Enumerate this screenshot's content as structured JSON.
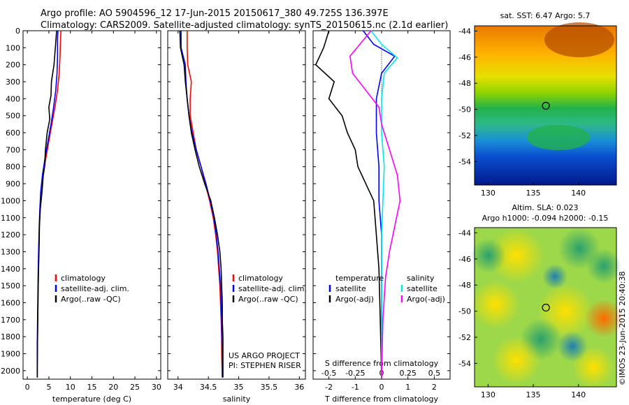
{
  "title_line1": "Argo profile: AO 5904596_12 17-Jun-2015 20150617_380 49.725S 136.397E",
  "title_line2": "Climatology: CARS2009. Satellite-adjusted climatology: synTS_20150615.nc (2.1d earlier)",
  "credit": "©IMOS 23-Jun-2015 20:40:38",
  "colors": {
    "climatology": "#ff0000",
    "satellite": "#0000ff",
    "argo": "#000000",
    "satellite_sal": "#00e5ee",
    "argo_sal": "#ff00ff"
  },
  "chart_data": [
    {
      "type": "line",
      "panel": "temperature",
      "xlabel": "temperature (deg C)",
      "ylabel": "",
      "xlim": [
        -1,
        31
      ],
      "ylim": [
        2050,
        0
      ],
      "xticks": [
        0,
        5,
        10,
        15,
        20,
        25,
        30
      ],
      "yticks": [
        0,
        100,
        200,
        300,
        400,
        500,
        600,
        700,
        800,
        900,
        1000,
        1100,
        1200,
        1300,
        1400,
        1500,
        1600,
        1700,
        1800,
        1900,
        2000
      ],
      "legend": [
        "climatology",
        "satellite-adj. clim.",
        "Argo(..raw -QC)"
      ],
      "legend_position": "lower-center",
      "series": [
        {
          "name": "climatology",
          "color": "#ff0000",
          "x": [
            7.8,
            7.7,
            7.6,
            7.4,
            7.0,
            6.4,
            5.7,
            5.0,
            4.3,
            3.7,
            3.3,
            3.0,
            2.8,
            2.7,
            2.6,
            2.55,
            2.5,
            2.45,
            2.4,
            2.35,
            2.3,
            2.3
          ],
          "y": [
            0,
            50,
            150,
            250,
            350,
            450,
            550,
            650,
            750,
            850,
            950,
            1050,
            1150,
            1250,
            1350,
            1450,
            1550,
            1650,
            1750,
            1850,
            1950,
            2040
          ]
        },
        {
          "name": "satellite-adj. clim.",
          "color": "#0000ff",
          "x": [
            7.1,
            7.0,
            7.0,
            6.9,
            6.6,
            6.1,
            5.5,
            4.8,
            4.1,
            3.5,
            3.1,
            2.9,
            2.75,
            2.65,
            2.55,
            2.5,
            2.45,
            2.4,
            2.35,
            2.3,
            2.3,
            2.3
          ],
          "y": [
            0,
            50,
            150,
            250,
            350,
            450,
            550,
            650,
            750,
            850,
            950,
            1050,
            1150,
            1250,
            1350,
            1450,
            1550,
            1650,
            1750,
            1850,
            1950,
            2040
          ]
        },
        {
          "name": "Argo(..raw -QC)",
          "color": "#000000",
          "x": [
            6.8,
            6.5,
            6.2,
            5.6,
            5.5,
            5.0,
            5.2,
            4.6,
            4.2,
            4.0,
            3.7,
            3.4,
            3.0,
            2.8,
            2.75,
            2.65,
            2.55,
            2.5,
            2.45,
            2.4,
            2.35,
            2.3
          ],
          "y": [
            0,
            100,
            200,
            300,
            380,
            450,
            520,
            600,
            700,
            800,
            850,
            950,
            1050,
            1150,
            1250,
            1350,
            1450,
            1550,
            1650,
            1750,
            1850,
            2040
          ]
        }
      ]
    },
    {
      "type": "line",
      "panel": "salinity",
      "xlabel": "salinity",
      "xlim": [
        33.83,
        36.1
      ],
      "ylim": [
        2050,
        0
      ],
      "xticks": [
        34,
        34.5,
        35,
        35.5,
        36
      ],
      "legend": [
        "climatology",
        "satellite-adj. clim.",
        "Argo(..raw -QC)"
      ],
      "legend_position": "lower-right",
      "annotation": [
        "US ARGO PROJECT",
        "PI: STEPHEN RISER"
      ],
      "series": [
        {
          "name": "climatology",
          "color": "#ff0000",
          "x": [
            34.15,
            34.15,
            34.16,
            34.22,
            34.2,
            34.2,
            34.25,
            34.3,
            34.38,
            34.45,
            34.52,
            34.58,
            34.62,
            34.65,
            34.67,
            34.69,
            34.7,
            34.71,
            34.72,
            34.72,
            34.73
          ],
          "y": [
            0,
            100,
            200,
            300,
            400,
            500,
            600,
            700,
            800,
            900,
            1000,
            1100,
            1200,
            1300,
            1400,
            1500,
            1600,
            1700,
            1800,
            1900,
            2040
          ]
        },
        {
          "name": "satellite-adj. clim.",
          "color": "#0000ff",
          "x": [
            34.05,
            34.05,
            34.12,
            34.13,
            34.15,
            34.18,
            34.23,
            34.3,
            34.38,
            34.46,
            34.53,
            34.59,
            34.63,
            34.66,
            34.68,
            34.7,
            34.71,
            34.72,
            34.72,
            34.73,
            34.73
          ],
          "y": [
            0,
            100,
            200,
            300,
            400,
            500,
            600,
            700,
            800,
            900,
            1000,
            1100,
            1200,
            1300,
            1400,
            1500,
            1600,
            1700,
            1800,
            1900,
            2040
          ]
        },
        {
          "name": "Argo(..raw -QC)",
          "color": "#000000",
          "x": [
            34.03,
            34.04,
            34.1,
            34.12,
            34.15,
            34.18,
            34.22,
            34.28,
            34.35,
            34.44,
            34.54,
            34.6,
            34.65,
            34.69,
            34.71,
            34.72,
            34.73,
            34.73,
            34.74,
            34.74,
            34.74
          ],
          "y": [
            0,
            100,
            200,
            300,
            400,
            500,
            600,
            700,
            800,
            900,
            1000,
            1100,
            1200,
            1300,
            1400,
            1500,
            1600,
            1700,
            1800,
            1900,
            2040
          ]
        }
      ]
    },
    {
      "type": "line",
      "panel": "difference",
      "xlabel": "T difference from climatology",
      "xlabel_top": "S difference from climatology",
      "xlim": [
        -2.6,
        2.6
      ],
      "ylim": [
        2050,
        0
      ],
      "xticks_T": [
        -2,
        -1,
        0,
        1,
        2
      ],
      "xticks_S": [
        -0.5,
        -0.25,
        0,
        0.25,
        0.5
      ],
      "legend_T": [
        "temperature",
        "satellite",
        "Argo(-adj)"
      ],
      "legend_S": [
        "salinity",
        "satellite",
        "Argo(-adj)"
      ],
      "series": [
        {
          "name": "temperature satellite",
          "color": "#0000ff",
          "x": [
            -0.7,
            -0.3,
            0.5,
            0.0,
            -0.2,
            -0.2,
            -0.1,
            -0.1,
            0.0,
            0.0,
            0.0,
            0.0,
            0.0
          ],
          "y": [
            0,
            80,
            150,
            250,
            400,
            600,
            800,
            1000,
            1200,
            1400,
            1600,
            1800,
            2040
          ]
        },
        {
          "name": "temperature Argo(-adj)",
          "color": "#000000",
          "x": [
            -2.0,
            -2.2,
            -2.5,
            -1.8,
            -2.0,
            -1.5,
            -1.3,
            -1.0,
            -0.9,
            -0.6,
            -0.3,
            -0.2,
            -0.1,
            -0.05,
            0.0
          ],
          "y": [
            0,
            100,
            200,
            300,
            400,
            500,
            600,
            700,
            800,
            900,
            1000,
            1200,
            1400,
            1700,
            2040
          ]
        },
        {
          "name": "salinity satellite",
          "color": "#00e5ee",
          "x": [
            -0.4,
            0.0,
            0.6,
            0.1,
            0.0,
            0.0,
            0.1,
            0.05,
            0.0,
            0.0,
            0.0,
            0.0
          ],
          "y": [
            0,
            80,
            160,
            250,
            400,
            600,
            800,
            1000,
            1200,
            1400,
            1700,
            2040
          ]
        },
        {
          "name": "salinity Argo(-adj)",
          "color": "#ff00ff",
          "x": [
            -0.4,
            -1.2,
            -1.1,
            -0.6,
            -0.1,
            0.0,
            0.3,
            0.6,
            0.7,
            0.5,
            0.3,
            0.15,
            0.05,
            0.0
          ],
          "y": [
            0,
            150,
            250,
            350,
            450,
            550,
            700,
            850,
            1000,
            1150,
            1300,
            1450,
            1700,
            2040
          ]
        }
      ]
    },
    {
      "type": "heatmap",
      "panel": "sst_map",
      "title": "sat. SST: 6.47  Argo: 5.7",
      "xticks": [
        130,
        135,
        140
      ],
      "yticks": [
        -44,
        -46,
        -48,
        -50,
        -52,
        -54
      ],
      "xlim": [
        128.5,
        144.2
      ],
      "ylim": [
        -55.8,
        -43.6
      ],
      "argo_position": [
        136.397,
        -49.725
      ]
    },
    {
      "type": "heatmap",
      "panel": "sla_map",
      "title_line1": "Altim. SLA: 0.023",
      "title_line2": "Argo h1000: -0.094 h2000: -0.15",
      "xticks": [
        130,
        135,
        140
      ],
      "yticks": [
        -44,
        -46,
        -48,
        -50,
        -52,
        -54
      ],
      "xlim": [
        128.5,
        144.2
      ],
      "ylim": [
        -55.8,
        -43.6
      ],
      "argo_position": [
        136.397,
        -49.725
      ]
    }
  ]
}
